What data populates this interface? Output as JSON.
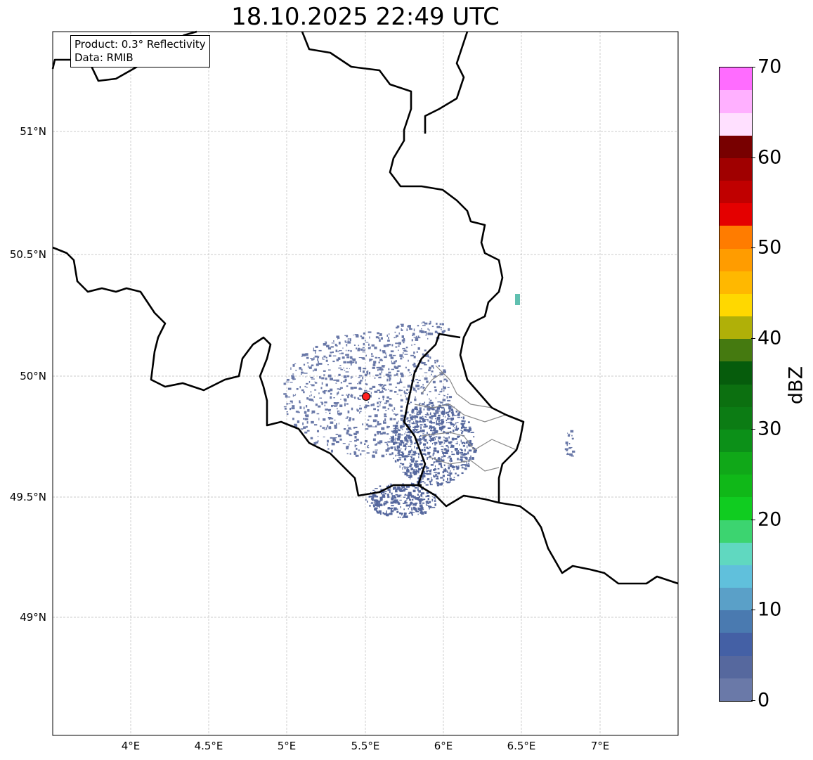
{
  "title": "18.10.2025 22:49 UTC",
  "info_box": {
    "product": "Product: 0.3° Reflectivity",
    "data": "Data: RMIB"
  },
  "x_ticks": [
    "4°E",
    "4.5°E",
    "5°E",
    "5.5°E",
    "6°E",
    "6.5°E",
    "7°E"
  ],
  "y_ticks": [
    "51°N",
    "50.5°N",
    "50°N",
    "49.5°N",
    "49°N"
  ],
  "radar_site": {
    "lon": 5.5,
    "lat": 49.92,
    "color": "#ff2020"
  },
  "colorbar": {
    "label": "dBZ",
    "ticks": [
      "0",
      "10",
      "20",
      "30",
      "40",
      "50",
      "60",
      "70"
    ],
    "min": 0,
    "max": 70,
    "step": 2.5,
    "colors": [
      "#6a79a8",
      "#56689e",
      "#4460a5",
      "#4a7ab0",
      "#5aa0c8",
      "#60c0dc",
      "#60d8c0",
      "#3cd470",
      "#10cc20",
      "#10b818",
      "#10a818",
      "#0c9018",
      "#0c7c14",
      "#0c7010",
      "#065c0c",
      "#457a10",
      "#b0b008",
      "#ffd800",
      "#ffb800",
      "#ff9c00",
      "#ff7c00",
      "#e40000",
      "#c00000",
      "#a00000",
      "#780000",
      "#ffe0ff",
      "#ffb0ff",
      "#ff6cff",
      "#ec34ec"
    ]
  }
}
